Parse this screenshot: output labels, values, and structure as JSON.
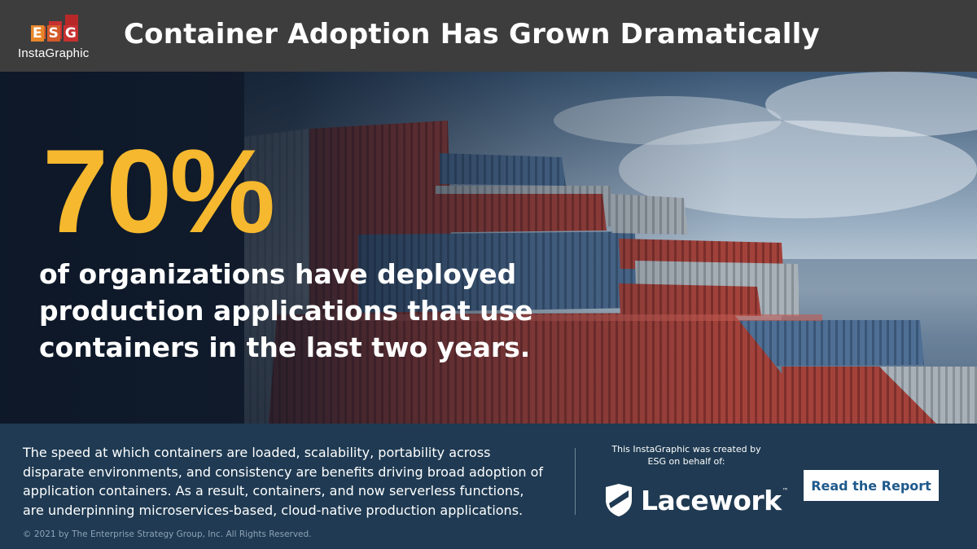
{
  "header": {
    "logo": {
      "letters": [
        "E",
        "S",
        "G"
      ],
      "subtitle": "InstaGraphic",
      "bar_colors": [
        "#d45a2a",
        "#c73030",
        "#b82828"
      ],
      "letter_colors": [
        "#e8872a",
        "#d45a2a",
        "#c73030"
      ]
    },
    "title": "Container Adoption Has Grown Dramatically"
  },
  "hero": {
    "stat": "70%",
    "description": "of organizations have deployed production applications that use containers in the last two years.",
    "background": "shipping-containers-photo",
    "stat_color": "#f5b82e"
  },
  "footer": {
    "body": "The speed at which containers are loaded, scalability, portability across disparate environments, and consistency are benefits driving broad adoption of application containers. As a result, containers, and now serverless functions, are underpinning microservices-based, cloud-native production applications.",
    "credit": "This InstaGraphic was created by ESG on behalf of:",
    "sponsor": {
      "name": "Lacework",
      "tm": "™",
      "icon": "lacework-shield-icon"
    },
    "cta_label": "Read the Report",
    "copyright": "© 2021 by The Enterprise Strategy Group, Inc. All Rights Reserved."
  }
}
